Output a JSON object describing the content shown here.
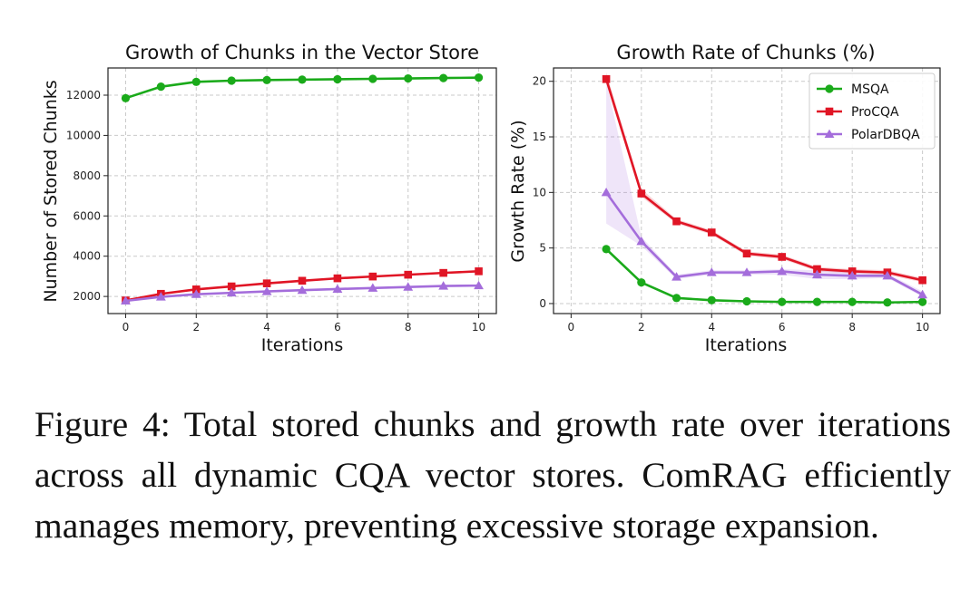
{
  "chart_data": [
    {
      "type": "line",
      "title": "Growth of Chunks in the Vector Store",
      "xlabel": "Iterations",
      "ylabel": "Number of Stored Chunks",
      "xlim": [
        -0.5,
        10.5
      ],
      "ylim": [
        1150,
        13350
      ],
      "xticks": [
        0,
        2,
        4,
        6,
        8,
        10
      ],
      "yticks": [
        2000,
        4000,
        6000,
        8000,
        10000,
        12000
      ],
      "grid": true,
      "legend": "none",
      "x": [
        0,
        1,
        2,
        3,
        4,
        5,
        6,
        7,
        8,
        9,
        10
      ],
      "series": [
        {
          "name": "MSQA",
          "color": "#1aaa1a",
          "marker": "circle",
          "values": [
            11850,
            12420,
            12660,
            12720,
            12750,
            12770,
            12790,
            12810,
            12830,
            12850,
            12870
          ]
        },
        {
          "name": "ProCQA",
          "color": "#e01525",
          "marker": "square",
          "values": [
            1800,
            2130,
            2350,
            2500,
            2650,
            2780,
            2900,
            2990,
            3080,
            3170,
            3250
          ]
        },
        {
          "name": "PolarDBQA",
          "color": "#a46ddb",
          "marker": "triangle",
          "values": [
            1780,
            1980,
            2110,
            2180,
            2250,
            2310,
            2370,
            2420,
            2470,
            2520,
            2540
          ]
        }
      ]
    },
    {
      "type": "line",
      "title": "Growth Rate of Chunks (%)",
      "xlabel": "Iterations",
      "ylabel": "Growth Rate (%)",
      "xlim": [
        -0.5,
        10.5
      ],
      "ylim": [
        -0.9,
        21.2
      ],
      "xticks": [
        0,
        2,
        4,
        6,
        8,
        10
      ],
      "yticks": [
        0,
        5,
        10,
        15,
        20
      ],
      "grid": true,
      "legend": "top-right",
      "x": [
        1,
        2,
        3,
        4,
        5,
        6,
        7,
        8,
        9,
        10
      ],
      "series": [
        {
          "name": "MSQA",
          "color": "#1aaa1a",
          "marker": "circle",
          "values": [
            4.9,
            1.9,
            0.5,
            0.3,
            0.2,
            0.15,
            0.15,
            0.15,
            0.1,
            0.15
          ],
          "band_low": [
            4.8,
            1.8,
            0.45,
            0.25,
            0.18,
            0.12,
            0.12,
            0.12,
            0.08,
            0.12
          ],
          "band_high": [
            5.0,
            2.0,
            0.55,
            0.35,
            0.25,
            0.2,
            0.2,
            0.2,
            0.15,
            0.2
          ]
        },
        {
          "name": "ProCQA",
          "color": "#e01525",
          "marker": "square",
          "values": [
            20.2,
            9.9,
            7.4,
            6.4,
            4.5,
            4.2,
            3.1,
            2.9,
            2.8,
            2.1
          ],
          "band_low": [
            19.9,
            9.6,
            7.2,
            6.2,
            4.3,
            4.0,
            2.9,
            2.7,
            2.6,
            1.9
          ],
          "band_high": [
            20.8,
            10.3,
            7.6,
            6.6,
            4.7,
            4.4,
            3.3,
            3.1,
            3.0,
            2.3
          ]
        },
        {
          "name": "PolarDBQA",
          "color": "#a46ddb",
          "marker": "triangle",
          "values": [
            10.0,
            5.6,
            2.4,
            2.8,
            2.8,
            2.9,
            2.6,
            2.5,
            2.5,
            0.8
          ],
          "band_low": [
            7.2,
            5.2,
            2.2,
            2.6,
            2.6,
            2.6,
            2.2,
            2.2,
            2.3,
            0.6
          ],
          "band_high": [
            20.0,
            6.0,
            2.6,
            3.0,
            3.0,
            3.1,
            3.0,
            2.8,
            2.7,
            1.1
          ]
        }
      ]
    }
  ],
  "caption": "Figure 4: Total stored chunks and growth rate over iterations across all dynamic CQA vector stores. ComRAG efficiently manages memory, preventing excessive storage expansion."
}
